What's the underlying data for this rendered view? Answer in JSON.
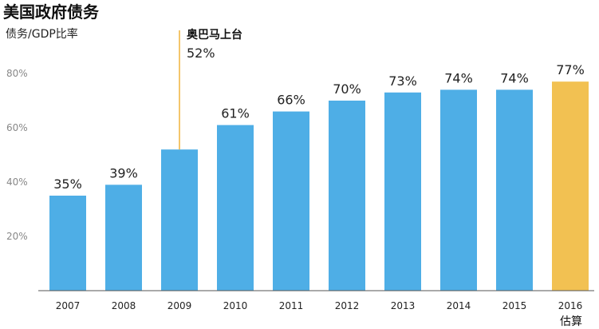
{
  "chart_data": {
    "type": "bar",
    "title": "美国政府债务",
    "ylabel": "债务/GDP比率",
    "yticks": [
      "20%",
      "40%",
      "60%",
      "80%"
    ],
    "ylim": [
      0,
      80
    ],
    "categories": [
      "2007",
      "2008",
      "2009",
      "2010",
      "2011",
      "2012",
      "2013",
      "2014",
      "2015",
      "2016"
    ],
    "values": [
      35,
      39,
      52,
      61,
      66,
      70,
      73,
      74,
      74,
      77
    ],
    "labels": [
      "35%",
      "39%",
      null,
      "61%",
      "66%",
      "70%",
      "73%",
      "74%",
      "74%",
      "77%"
    ],
    "annotation": {
      "label": "奥巴马上台",
      "value_label": "52%"
    },
    "estimate_note": "估算",
    "colors": {
      "bar": "#4eaee6",
      "estimate_bar": "#f2c152",
      "annotation_line": "#f0b43c"
    },
    "grid": false
  }
}
